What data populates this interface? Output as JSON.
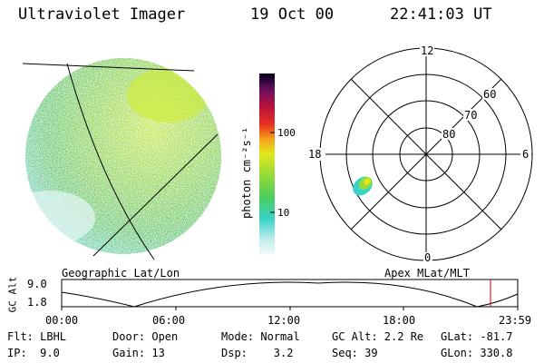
{
  "header": {
    "instrument": "Ultraviolet Imager",
    "date": "19 Oct 00",
    "time": "22:41:03 UT"
  },
  "left_panel": {
    "caption": "Geographic Lat/Lon"
  },
  "colorbar": {
    "unit_label": "photon cm⁻²s⁻¹",
    "ticks": [
      "100",
      "10"
    ]
  },
  "polar_panel": {
    "caption": "Apex MLat/MLT",
    "mlt_labels": {
      "top": "12",
      "left": "18",
      "right": "6",
      "bottom": "0"
    },
    "lat_labels": [
      "60",
      "70",
      "80"
    ]
  },
  "altitude_plot": {
    "ylabel": "GC Alt",
    "yticks": [
      "9.0",
      "1.8"
    ],
    "xticks": [
      "00:00",
      "06:00",
      "12:00",
      "18:00",
      "23:59"
    ]
  },
  "info": {
    "flt": "Flt: LBHL",
    "ip": "IP:  9.0",
    "door": "Door: Open",
    "gain": "Gain: 13",
    "mode": "Mode: Normal",
    "dsp": "Dsp:    3.2",
    "gcalt": "GC Alt: 2.2 Re",
    "seq": "Seq: 39",
    "glat": "GLat: -81.7",
    "glon": "GLon: 330.8"
  },
  "colors": {
    "red_marker": "#cc0000"
  }
}
